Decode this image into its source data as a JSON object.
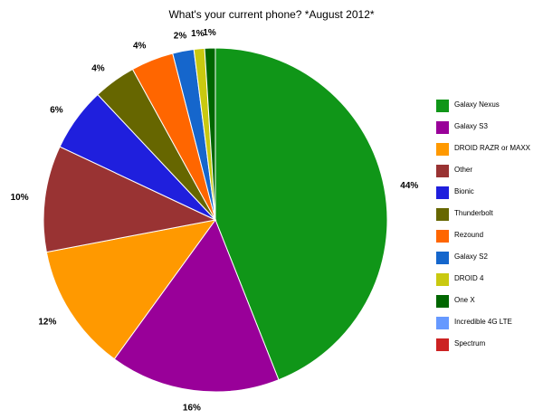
{
  "chart_data": {
    "type": "pie",
    "title": "What's your current phone? *August 2012*",
    "legend_position": "right",
    "slices": [
      {
        "name": "Galaxy Nexus",
        "value": 44,
        "label": "44%",
        "color": "#109618"
      },
      {
        "name": "Galaxy S3",
        "value": 16,
        "label": "16%",
        "color": "#990099"
      },
      {
        "name": "DROID RAZR or MAXX",
        "value": 12,
        "label": "12%",
        "color": "#ff9900"
      },
      {
        "name": "Other",
        "value": 10,
        "label": "10%",
        "color": "#993333"
      },
      {
        "name": "Bionic",
        "value": 6,
        "label": "6%",
        "color": "#1f1fdd"
      },
      {
        "name": "Thunderbolt",
        "value": 4,
        "label": "4%",
        "color": "#666600"
      },
      {
        "name": "Rezound",
        "value": 4,
        "label": "4%",
        "color": "#ff6600"
      },
      {
        "name": "Galaxy S2",
        "value": 2,
        "label": "2%",
        "color": "#1566cc"
      },
      {
        "name": "DROID 4",
        "value": 1,
        "label": "1%",
        "color": "#c9c910"
      },
      {
        "name": "One X",
        "value": 1,
        "label": "1%",
        "color": "#006600"
      },
      {
        "name": "Incredible 4G LTE",
        "value": 0,
        "label": "",
        "color": "#6699ff"
      },
      {
        "name": "Spectrum",
        "value": 0,
        "label": "",
        "color": "#cc2222"
      }
    ]
  }
}
